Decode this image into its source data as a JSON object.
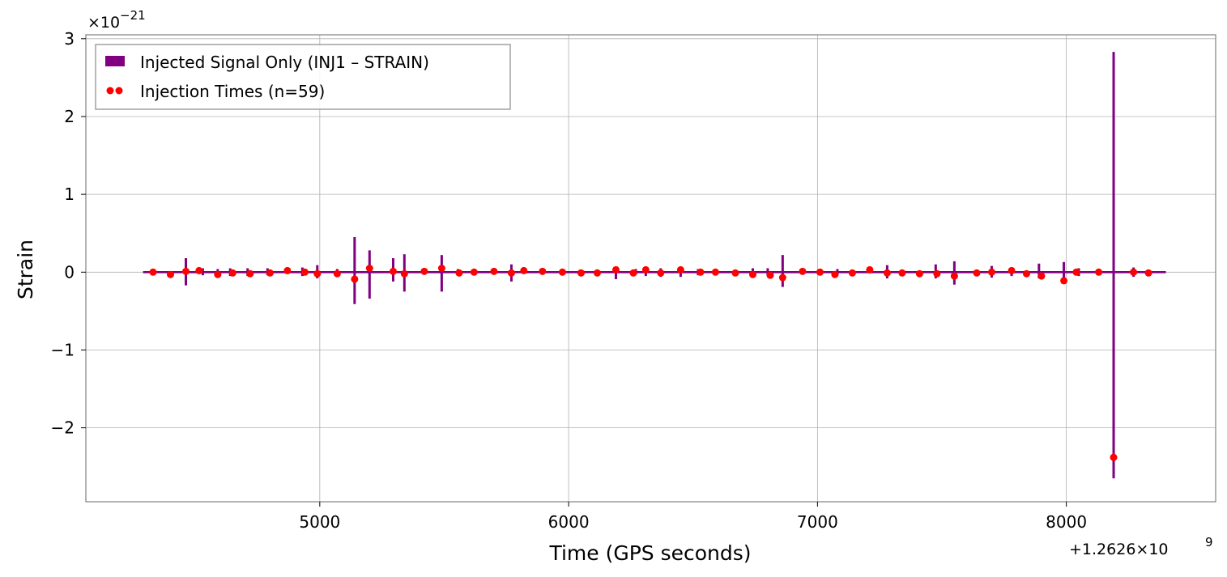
{
  "chart_data": {
    "type": "line",
    "xlabel": "Time (GPS seconds)",
    "ylabel": "Strain",
    "x_offset_text": "+1.2626×10",
    "x_offset_exp": "9",
    "y_scale_text": "×10",
    "y_scale_exp": "−21",
    "x_offset": 1262600000,
    "y_scale": 1e-21,
    "xlim": [
      4060,
      8600
    ],
    "ylim": [
      -2.95,
      3.05
    ],
    "xticks": [
      5000,
      6000,
      7000,
      8000
    ],
    "xtick_labels": [
      "5000",
      "6000",
      "7000",
      "8000"
    ],
    "yticks": [
      -2,
      -1,
      0,
      1,
      2,
      3
    ],
    "ytick_labels": [
      "−2",
      "−1",
      "0",
      "1",
      "2",
      "3"
    ],
    "grid": true,
    "legend_position": "top-left",
    "series": [
      {
        "name": "Injected Signal Only (INJ1 – STRAIN)",
        "color": "#800080",
        "kind": "line",
        "x_range": [
          4290,
          8400
        ],
        "baseline": 0,
        "spikes": [
          {
            "x": 4462,
            "max": 0.18,
            "min": -0.17
          },
          {
            "x": 4530,
            "max": 0.05,
            "min": -0.04
          },
          {
            "x": 4590,
            "max": 0.04,
            "min": -0.04
          },
          {
            "x": 4640,
            "max": 0.05,
            "min": -0.05
          },
          {
            "x": 4710,
            "max": 0.05,
            "min": -0.05
          },
          {
            "x": 4790,
            "max": 0.05,
            "min": -0.04
          },
          {
            "x": 4930,
            "max": 0.06,
            "min": -0.05
          },
          {
            "x": 4990,
            "max": 0.09,
            "min": -0.08
          },
          {
            "x": 5070,
            "max": 0.04,
            "min": -0.04
          },
          {
            "x": 5140,
            "max": 0.45,
            "min": -0.41
          },
          {
            "x": 5200,
            "max": 0.28,
            "min": -0.34
          },
          {
            "x": 5295,
            "max": 0.18,
            "min": -0.12
          },
          {
            "x": 5340,
            "max": 0.23,
            "min": -0.25
          },
          {
            "x": 5490,
            "max": 0.22,
            "min": -0.25
          },
          {
            "x": 5555,
            "max": 0.04,
            "min": -0.04
          },
          {
            "x": 5770,
            "max": 0.1,
            "min": -0.12
          },
          {
            "x": 6045,
            "max": 0.03,
            "min": -0.03
          },
          {
            "x": 6190,
            "max": 0.07,
            "min": -0.09
          },
          {
            "x": 6270,
            "max": 0.04,
            "min": -0.03
          },
          {
            "x": 6310,
            "max": 0.05,
            "min": -0.05
          },
          {
            "x": 6370,
            "max": 0.05,
            "min": -0.06
          },
          {
            "x": 6450,
            "max": 0.05,
            "min": -0.06
          },
          {
            "x": 6520,
            "max": 0.04,
            "min": -0.04
          },
          {
            "x": 6740,
            "max": 0.05,
            "min": -0.05
          },
          {
            "x": 6800,
            "max": 0.05,
            "min": -0.05
          },
          {
            "x": 6860,
            "max": 0.22,
            "min": -0.19
          },
          {
            "x": 7080,
            "max": 0.04,
            "min": -0.04
          },
          {
            "x": 7280,
            "max": 0.09,
            "min": -0.08
          },
          {
            "x": 7475,
            "max": 0.1,
            "min": -0.08
          },
          {
            "x": 7550,
            "max": 0.14,
            "min": -0.16
          },
          {
            "x": 7700,
            "max": 0.08,
            "min": -0.07
          },
          {
            "x": 7780,
            "max": 0.05,
            "min": -0.05
          },
          {
            "x": 7890,
            "max": 0.11,
            "min": -0.08
          },
          {
            "x": 7990,
            "max": 0.13,
            "min": -0.11
          },
          {
            "x": 8050,
            "max": 0.05,
            "min": -0.05
          },
          {
            "x": 8190,
            "max": 2.83,
            "min": -2.65
          },
          {
            "x": 8270,
            "max": 0.06,
            "min": -0.06
          }
        ]
      },
      {
        "name": "Injection Times (n=59)",
        "color": "#ff0000",
        "kind": "scatter",
        "points": [
          [
            4330,
            0.0
          ],
          [
            4400,
            -0.03
          ],
          [
            4462,
            0.01
          ],
          [
            4515,
            0.02
          ],
          [
            4590,
            -0.03
          ],
          [
            4650,
            -0.01
          ],
          [
            4720,
            -0.02
          ],
          [
            4800,
            -0.01
          ],
          [
            4870,
            0.02
          ],
          [
            4940,
            0.0
          ],
          [
            4990,
            -0.02
          ],
          [
            5070,
            -0.02
          ],
          [
            5140,
            -0.09
          ],
          [
            5200,
            0.05
          ],
          [
            5295,
            0.01
          ],
          [
            5340,
            -0.02
          ],
          [
            5420,
            0.01
          ],
          [
            5490,
            0.05
          ],
          [
            5560,
            -0.01
          ],
          [
            5620,
            0.0
          ],
          [
            5700,
            0.01
          ],
          [
            5770,
            -0.01
          ],
          [
            5820,
            0.02
          ],
          [
            5895,
            0.01
          ],
          [
            5975,
            0.0
          ],
          [
            6050,
            -0.01
          ],
          [
            6115,
            -0.01
          ],
          [
            6190,
            0.03
          ],
          [
            6260,
            -0.01
          ],
          [
            6310,
            0.03
          ],
          [
            6370,
            -0.01
          ],
          [
            6450,
            0.03
          ],
          [
            6530,
            0.0
          ],
          [
            6590,
            0.0
          ],
          [
            6670,
            -0.01
          ],
          [
            6740,
            -0.03
          ],
          [
            6810,
            -0.04
          ],
          [
            6860,
            -0.07
          ],
          [
            6940,
            0.01
          ],
          [
            7010,
            0.0
          ],
          [
            7070,
            -0.03
          ],
          [
            7140,
            -0.01
          ],
          [
            7210,
            0.03
          ],
          [
            7280,
            -0.01
          ],
          [
            7340,
            -0.01
          ],
          [
            7410,
            -0.02
          ],
          [
            7480,
            -0.02
          ],
          [
            7550,
            -0.05
          ],
          [
            7640,
            -0.01
          ],
          [
            7700,
            0.0
          ],
          [
            7780,
            0.02
          ],
          [
            7840,
            -0.02
          ],
          [
            7900,
            -0.05
          ],
          [
            7990,
            -0.11
          ],
          [
            8040,
            0.0
          ],
          [
            8130,
            0.0
          ],
          [
            8190,
            -2.38
          ],
          [
            8270,
            0.0
          ],
          [
            8330,
            -0.01
          ]
        ]
      }
    ]
  }
}
